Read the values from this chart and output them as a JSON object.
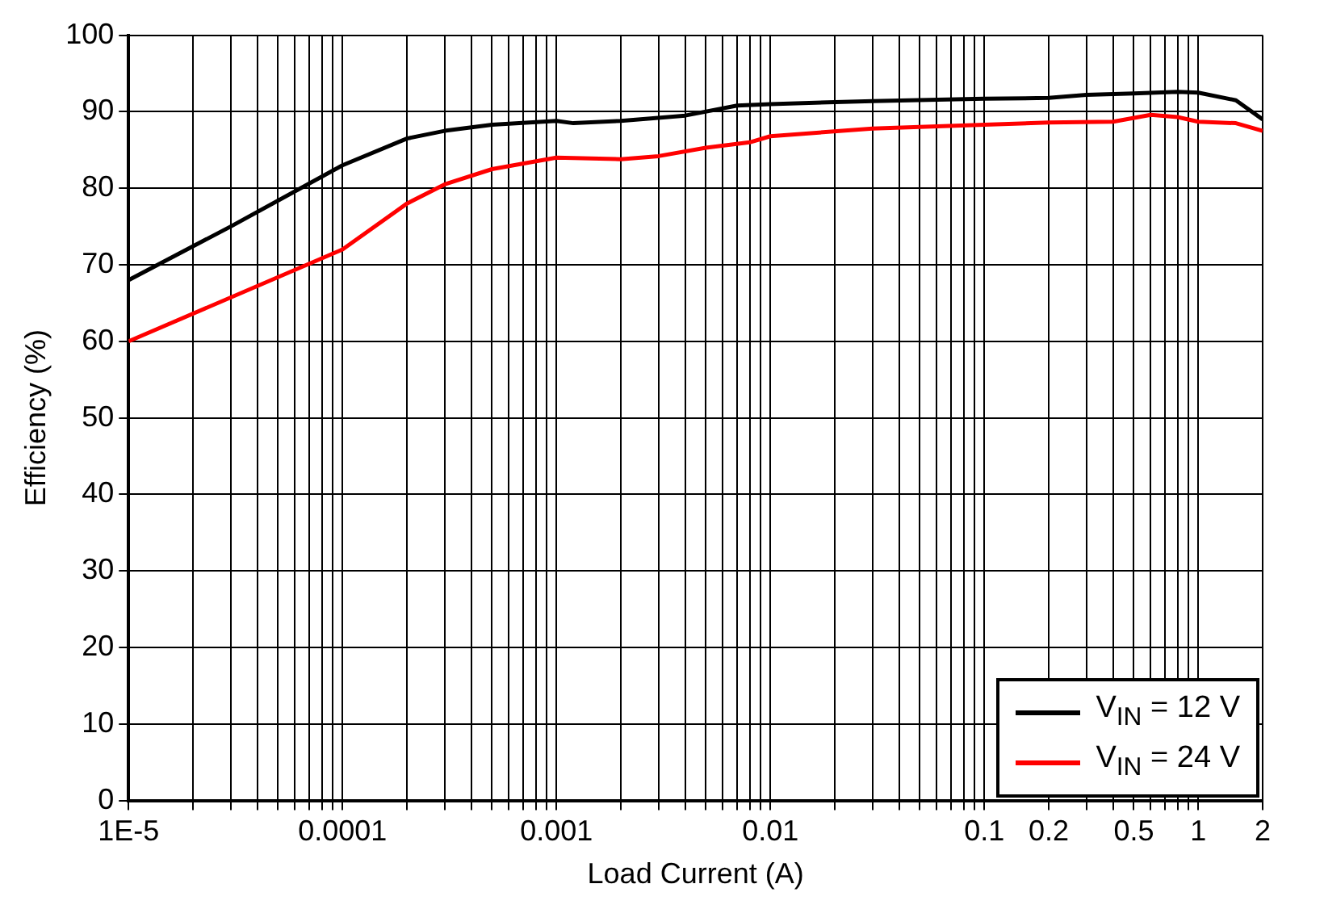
{
  "chart_data": {
    "type": "line",
    "xlabel": "Load Current (A)",
    "ylabel": "Efficiency (%)",
    "xlim": [
      1e-05,
      2
    ],
    "ylim": [
      0,
      100
    ],
    "log": "x",
    "grid": true,
    "legend": "bottom right",
    "marker": "none",
    "line_style": "solid",
    "xticks": [
      {
        "value": 1e-05,
        "label": "1E-5"
      },
      {
        "value": 2e-05,
        "label": null
      },
      {
        "value": 3e-05,
        "label": null
      },
      {
        "value": 4e-05,
        "label": null
      },
      {
        "value": 5e-05,
        "label": null
      },
      {
        "value": 6e-05,
        "label": null
      },
      {
        "value": 7e-05,
        "label": null
      },
      {
        "value": 8e-05,
        "label": null
      },
      {
        "value": 9e-05,
        "label": null
      },
      0.0001,
      {
        "value": 0.0002,
        "label": null
      },
      {
        "value": 0.0003,
        "label": null
      },
      {
        "value": 0.0004,
        "label": null
      },
      {
        "value": 0.0005,
        "label": null
      },
      {
        "value": 0.0006,
        "label": null
      },
      {
        "value": 0.0007,
        "label": null
      },
      {
        "value": 0.0008,
        "label": null
      },
      {
        "value": 0.0009,
        "label": null
      },
      0.001,
      {
        "value": 0.002,
        "label": null
      },
      {
        "value": 0.003,
        "label": null
      },
      {
        "value": 0.004,
        "label": null
      },
      {
        "value": 0.005,
        "label": null
      },
      {
        "value": 0.006,
        "label": null
      },
      {
        "value": 0.007,
        "label": null
      },
      {
        "value": 0.008,
        "label": null
      },
      {
        "value": 0.009,
        "label": null
      },
      0.01,
      {
        "value": 0.02,
        "label": null
      },
      {
        "value": 0.03,
        "label": null
      },
      {
        "value": 0.04,
        "label": null
      },
      {
        "value": 0.05,
        "label": null
      },
      {
        "value": 0.06,
        "label": null
      },
      {
        "value": 0.07,
        "label": null
      },
      {
        "value": 0.08,
        "label": null
      },
      {
        "value": 0.09,
        "label": null
      },
      0.1,
      0.2,
      {
        "value": 0.3,
        "label": null
      },
      {
        "value": 0.4,
        "label": null
      },
      0.5,
      {
        "value": 0.6,
        "label": null
      },
      {
        "value": 0.7,
        "label": null
      },
      {
        "value": 0.8,
        "label": null
      },
      {
        "value": 0.9,
        "label": null
      },
      1,
      2
    ],
    "yticks": [
      0,
      10,
      20,
      30,
      40,
      50,
      60,
      70,
      80,
      90,
      100
    ],
    "series": [
      {
        "name": "V$_{IN}$ = 12 V",
        "color": "#000000",
        "x": [
          1e-05,
          3e-05,
          0.0001,
          0.0002,
          0.0003,
          0.0005,
          0.001,
          0.0012,
          0.002,
          0.004,
          0.007,
          0.01,
          0.03,
          0.1,
          0.2,
          0.3,
          0.5,
          0.8,
          1,
          1.5,
          2
        ],
        "values": [
          68,
          75,
          83,
          86.5,
          87.5,
          88.3,
          88.8,
          88.5,
          88.8,
          89.5,
          90.8,
          91,
          91.4,
          91.7,
          91.8,
          92.2,
          92.4,
          92.6,
          92.5,
          91.5,
          89
        ]
      },
      {
        "name": "V$_{IN}$ = 24 V",
        "color": "#ff0000",
        "x": [
          1e-05,
          0.0001,
          0.0002,
          0.0003,
          0.0005,
          0.001,
          0.002,
          0.003,
          0.005,
          0.008,
          0.01,
          0.03,
          0.1,
          0.2,
          0.4,
          0.6,
          0.8,
          1,
          1.5,
          2
        ],
        "values": [
          60,
          72,
          78,
          80.5,
          82.5,
          84,
          83.8,
          84.2,
          85.3,
          86,
          86.8,
          87.8,
          88.3,
          88.6,
          88.7,
          89.6,
          89.3,
          88.7,
          88.5,
          87.5
        ]
      }
    ]
  }
}
